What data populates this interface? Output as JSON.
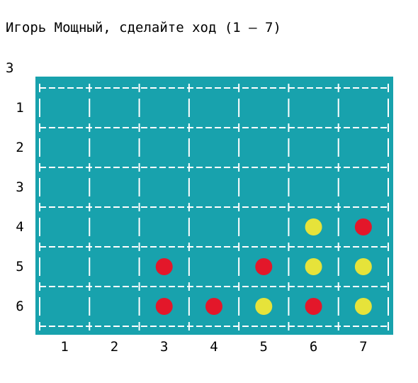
{
  "prompt": {
    "text": "Игорь Мощный, сделайте ход (1 – 7)"
  },
  "input": {
    "value": "3"
  },
  "board": {
    "background_color": "#18a2ad",
    "grid_color": "#ffffff",
    "rows": 6,
    "cols": 7,
    "row_labels": [
      "1",
      "2",
      "3",
      "4",
      "5",
      "6"
    ],
    "col_labels": [
      "1",
      "2",
      "3",
      "4",
      "5",
      "6",
      "7"
    ],
    "pieces": [
      {
        "row": 4,
        "col": 6,
        "color": "yellow"
      },
      {
        "row": 4,
        "col": 7,
        "color": "red"
      },
      {
        "row": 5,
        "col": 3,
        "color": "red"
      },
      {
        "row": 5,
        "col": 5,
        "color": "red"
      },
      {
        "row": 5,
        "col": 6,
        "color": "yellow"
      },
      {
        "row": 5,
        "col": 7,
        "color": "yellow"
      },
      {
        "row": 6,
        "col": 3,
        "color": "red"
      },
      {
        "row": 6,
        "col": 4,
        "color": "red"
      },
      {
        "row": 6,
        "col": 5,
        "color": "yellow"
      },
      {
        "row": 6,
        "col": 6,
        "color": "red"
      },
      {
        "row": 6,
        "col": 7,
        "color": "yellow"
      }
    ],
    "piece_colors": {
      "red": "#e3172a",
      "yellow": "#e6e33a"
    }
  }
}
